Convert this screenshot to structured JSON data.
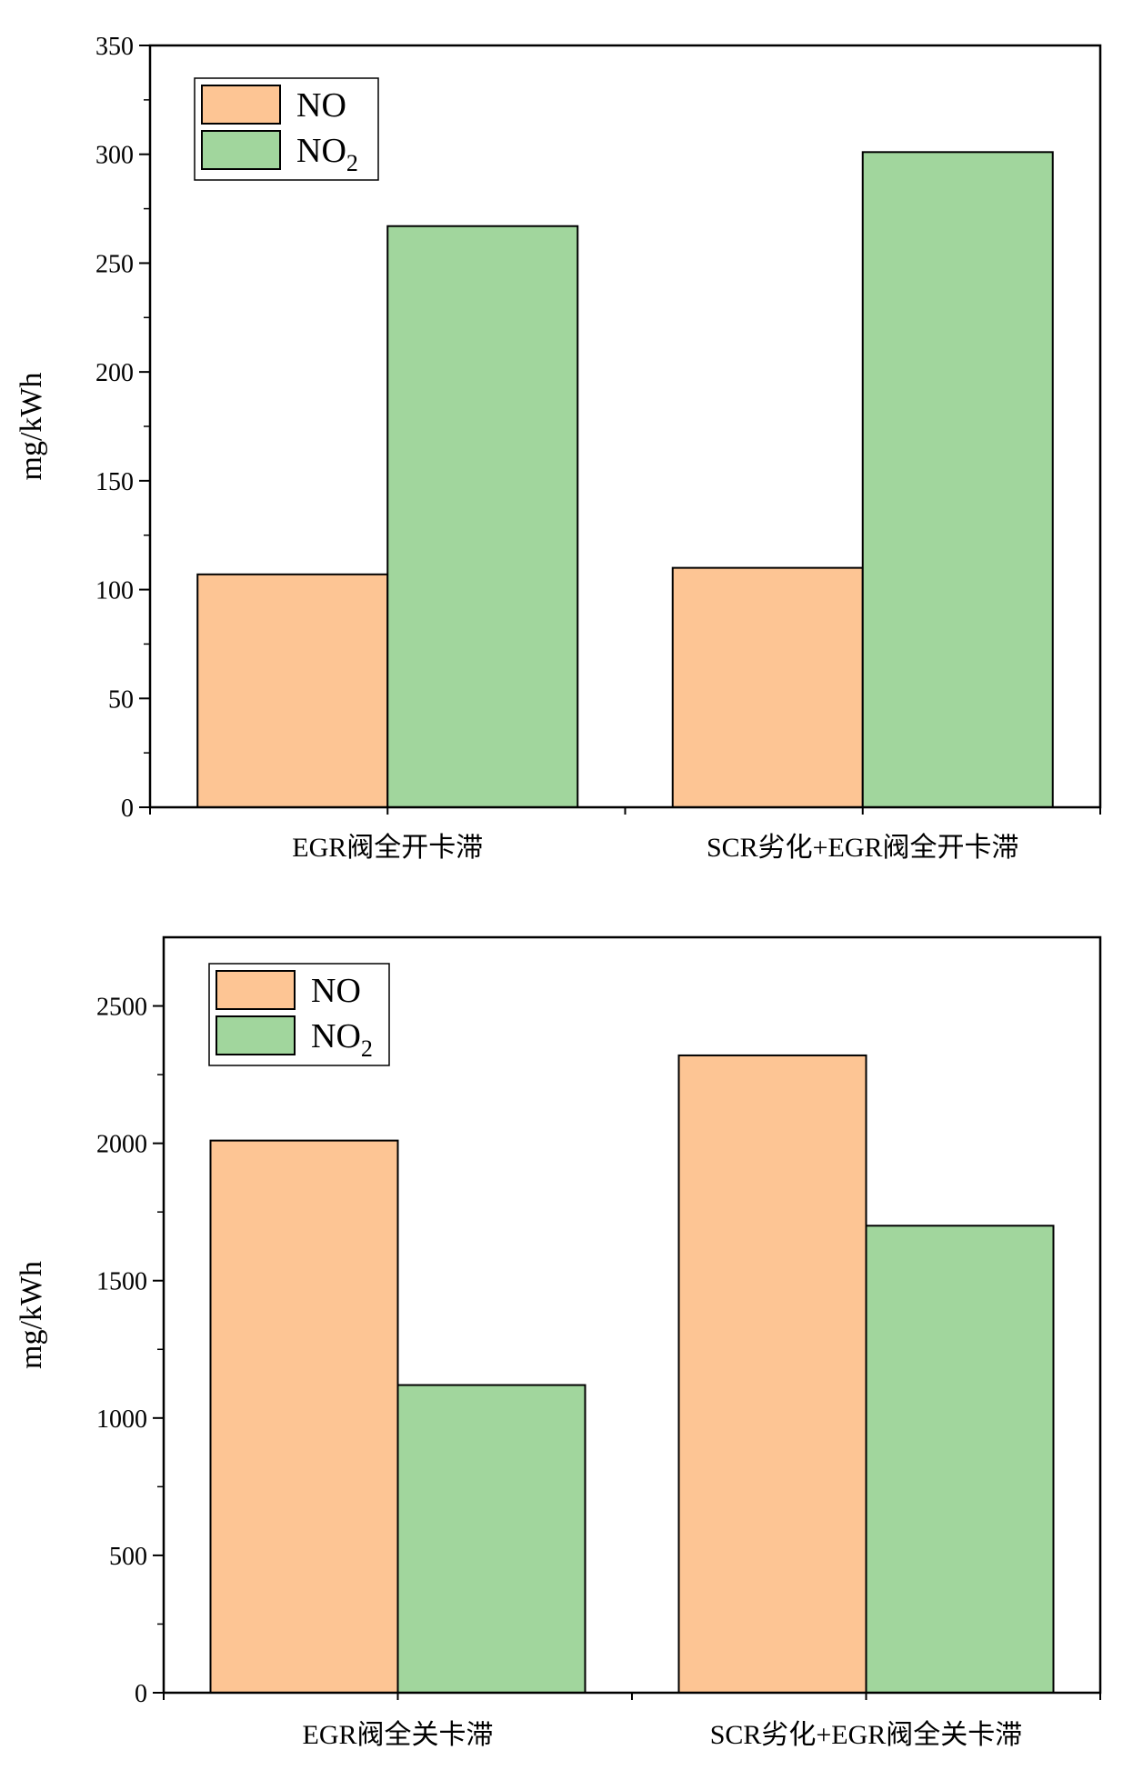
{
  "chart_data": [
    {
      "type": "bar",
      "ylabel": "mg/kWh",
      "ylim": [
        0,
        350
      ],
      "yticks": [
        0,
        50,
        100,
        150,
        200,
        250,
        300,
        350
      ],
      "categories": [
        "EGR阀全开卡滞",
        "SCR劣化+EGR阀全开卡滞"
      ],
      "series": [
        {
          "name": "NO",
          "color": "#fdc594",
          "values": [
            107,
            110
          ]
        },
        {
          "name": "NO",
          "name_subscript": "2",
          "color": "#a1d69d",
          "values": [
            267,
            301
          ]
        }
      ],
      "legend_position": "top-left"
    },
    {
      "type": "bar",
      "ylabel": "mg/kWh",
      "ylim": [
        0,
        2750
      ],
      "yticks": [
        0,
        500,
        1000,
        1500,
        2000,
        2500
      ],
      "categories": [
        "EGR阀全关卡滞",
        "SCR劣化+EGR阀全关卡滞"
      ],
      "series": [
        {
          "name": "NO",
          "color": "#fdc594",
          "values": [
            2010,
            2320
          ]
        },
        {
          "name": "NO",
          "name_subscript": "2",
          "color": "#a1d69d",
          "values": [
            1120,
            1700
          ]
        }
      ],
      "legend_position": "top-left"
    }
  ]
}
